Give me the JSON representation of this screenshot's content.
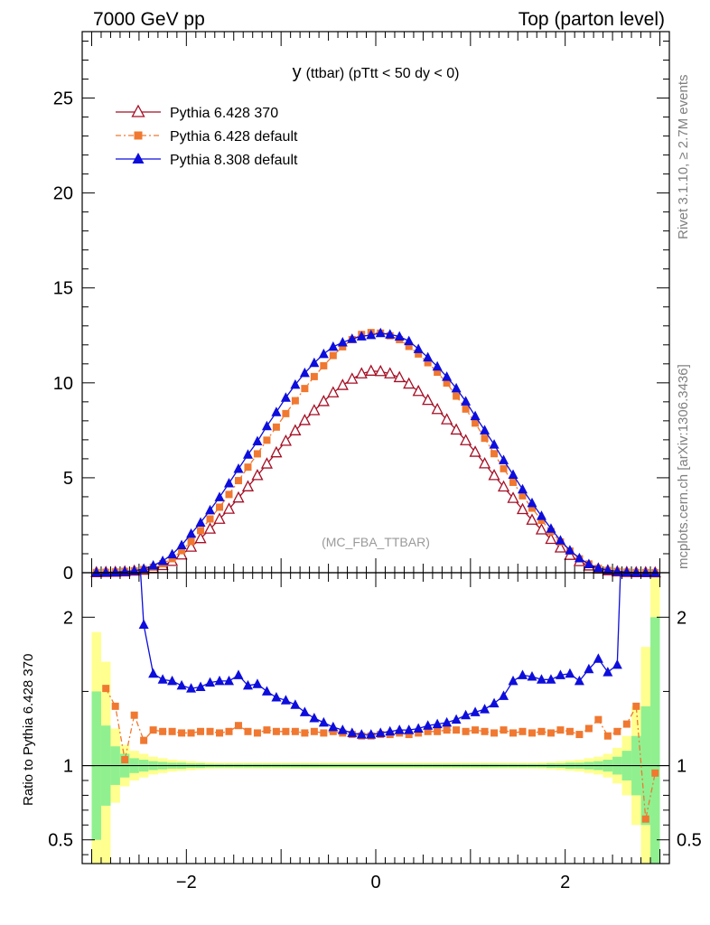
{
  "header": {
    "left": "7000 GeV pp",
    "right": "Top (parton level)"
  },
  "side_labels": {
    "rivet": "Rivet 3.1.10, ≥ 2.7M events",
    "source": "mcplots.cern.ch [arXiv:1306.3436]"
  },
  "chart_data": {
    "type": "line",
    "title_main": "y",
    "title_rest": "(ttbar) (pTtt < 50 dy < 0)",
    "watermark": "(MC_FBA_TTBAR)",
    "xlim": [
      -3.1,
      3.1
    ],
    "ylim": [
      0,
      28.5
    ],
    "ratio_ylim": [
      0.34,
      2.3
    ],
    "yticks": [
      0,
      5,
      10,
      15,
      20,
      25
    ],
    "ytick_labels": [
      "0",
      "5",
      "10",
      "15",
      "20",
      "25"
    ],
    "xticks": [
      -2,
      0,
      2
    ],
    "xtick_labels": [
      "−2",
      "0",
      "2"
    ],
    "ratio_yticks": [
      0.5,
      1,
      2
    ],
    "ratio_ytick_labels": [
      "0.5",
      "1",
      "2"
    ],
    "ratio_ylabel": "Ratio to Pythia 6.428 370",
    "ylabel": "",
    "xlabel": "",
    "bin_width": 0.1,
    "x": [
      -2.95,
      -2.85,
      -2.75,
      -2.65,
      -2.55,
      -2.45,
      -2.35,
      -2.25,
      -2.15,
      -2.05,
      -1.95,
      -1.85,
      -1.75,
      -1.65,
      -1.55,
      -1.45,
      -1.35,
      -1.25,
      -1.15,
      -1.05,
      -0.95,
      -0.85,
      -0.75,
      -0.65,
      -0.55,
      -0.45,
      -0.35,
      -0.25,
      -0.15,
      -0.05,
      0.05,
      0.15,
      0.25,
      0.35,
      0.45,
      0.55,
      0.65,
      0.75,
      0.85,
      0.95,
      1.05,
      1.15,
      1.25,
      1.35,
      1.45,
      1.55,
      1.65,
      1.75,
      1.85,
      1.95,
      2.05,
      2.15,
      2.25,
      2.35,
      2.45,
      2.55,
      2.65,
      2.75,
      2.85,
      2.95
    ],
    "series": [
      {
        "name": "Pythia 6.428 370",
        "color": "#a50f25",
        "marker": "triangle-open",
        "values": [
          0.01,
          0.02,
          0.03,
          0.05,
          0.09,
          0.14,
          0.23,
          0.38,
          0.6,
          0.94,
          1.35,
          1.8,
          2.3,
          2.82,
          3.35,
          3.94,
          4.53,
          5.12,
          5.73,
          6.32,
          6.93,
          7.48,
          8.02,
          8.54,
          9.02,
          9.48,
          9.87,
          10.2,
          10.48,
          10.62,
          10.6,
          10.48,
          10.28,
          9.94,
          9.55,
          9.08,
          8.6,
          8.06,
          7.52,
          6.96,
          6.35,
          5.74,
          5.12,
          4.52,
          3.92,
          3.33,
          2.77,
          2.26,
          1.76,
          1.31,
          0.92,
          0.59,
          0.36,
          0.2,
          0.11,
          0.05,
          0.02,
          0.01,
          0.01,
          0.0
        ],
        "ratio": [
          1.0,
          1.0,
          1.0,
          1.0,
          1.0,
          1.0,
          1.0,
          1.0,
          1.0,
          1.0,
          1.0,
          1.0,
          1.0,
          1.0,
          1.0,
          1.0,
          1.0,
          1.0,
          1.0,
          1.0,
          1.0,
          1.0,
          1.0,
          1.0,
          1.0,
          1.0,
          1.0,
          1.0,
          1.0,
          1.0,
          1.0,
          1.0,
          1.0,
          1.0,
          1.0,
          1.0,
          1.0,
          1.0,
          1.0,
          1.0,
          1.0,
          1.0,
          1.0,
          1.0,
          1.0,
          1.0,
          1.0,
          1.0,
          1.0,
          1.0,
          1.0,
          1.0,
          1.0,
          1.0,
          1.0,
          1.0,
          1.0,
          1.0,
          1.0,
          1.0
        ]
      },
      {
        "name": "Pythia 6.428 default",
        "color": "#f07830",
        "marker": "square",
        "values": [
          0.01,
          0.02,
          0.04,
          0.07,
          0.1,
          0.17,
          0.29,
          0.47,
          0.74,
          1.16,
          1.64,
          2.22,
          2.83,
          3.45,
          4.12,
          4.85,
          5.56,
          6.26,
          6.98,
          7.67,
          8.38,
          9.06,
          9.7,
          10.33,
          10.9,
          11.44,
          11.9,
          12.28,
          12.55,
          12.65,
          12.62,
          12.48,
          12.28,
          11.92,
          11.52,
          11.06,
          10.56,
          9.99,
          9.3,
          8.62,
          7.88,
          7.08,
          6.27,
          5.48,
          4.76,
          4.05,
          3.4,
          2.76,
          2.17,
          1.62,
          1.14,
          0.73,
          0.46,
          0.23,
          0.12,
          0.07,
          0.03,
          0.01,
          0.01,
          0.0
        ],
        "ratio": [
          null,
          1.52,
          1.4,
          1.04,
          1.34,
          1.17,
          1.24,
          1.23,
          1.23,
          1.22,
          1.22,
          1.23,
          1.23,
          1.22,
          1.23,
          1.27,
          1.23,
          1.22,
          1.24,
          1.23,
          1.23,
          1.23,
          1.22,
          1.23,
          1.22,
          1.23,
          1.22,
          1.21,
          1.2,
          1.2,
          1.21,
          1.21,
          1.22,
          1.21,
          1.22,
          1.23,
          1.23,
          1.24,
          1.24,
          1.23,
          1.24,
          1.23,
          1.22,
          1.24,
          1.22,
          1.23,
          1.22,
          1.23,
          1.22,
          1.24,
          1.23,
          1.21,
          1.25,
          1.31,
          1.2,
          1.23,
          1.28,
          1.4,
          0.64,
          0.95
        ]
      },
      {
        "name": "Pythia 8.308 default",
        "color": "#0d0ddc",
        "marker": "triangle",
        "values": [
          0.01,
          0.02,
          0.03,
          0.06,
          0.1,
          0.2,
          0.38,
          0.62,
          0.97,
          1.45,
          2.05,
          2.64,
          3.29,
          3.98,
          4.71,
          5.47,
          6.22,
          6.92,
          7.72,
          8.46,
          9.22,
          9.9,
          10.52,
          11.05,
          11.52,
          11.9,
          12.13,
          12.32,
          12.45,
          12.52,
          12.62,
          12.55,
          12.44,
          12.2,
          11.78,
          11.34,
          10.86,
          10.32,
          9.71,
          9.02,
          8.25,
          7.5,
          6.75,
          5.93,
          5.16,
          4.39,
          3.67,
          2.99,
          2.32,
          1.7,
          1.18,
          0.77,
          0.45,
          0.25,
          0.14,
          0.07,
          0.03,
          0.01,
          0.0,
          0.0
        ],
        "ratio": [
          null,
          null,
          null,
          4.0,
          3.0,
          1.95,
          1.62,
          1.58,
          1.57,
          1.54,
          1.52,
          1.53,
          1.56,
          1.57,
          1.57,
          1.61,
          1.54,
          1.55,
          1.5,
          1.46,
          1.44,
          1.41,
          1.36,
          1.32,
          1.29,
          1.26,
          1.24,
          1.22,
          1.21,
          1.21,
          1.22,
          1.23,
          1.24,
          1.24,
          1.25,
          1.27,
          1.28,
          1.29,
          1.31,
          1.34,
          1.36,
          1.38,
          1.42,
          1.47,
          1.57,
          1.61,
          1.6,
          1.58,
          1.58,
          1.61,
          1.62,
          1.57,
          1.65,
          1.72,
          1.63,
          1.68,
          3.5,
          null,
          null,
          null
        ]
      }
    ],
    "mc_band_1sigma_rel": [
      0.5,
      0.27,
      0.13,
      0.08,
      0.05,
      0.04,
      0.03,
      0.025,
      0.02,
      0.02,
      0.015,
      0.015,
      0.012,
      0.012,
      0.012,
      0.012,
      0.012,
      0.012,
      0.012,
      0.012,
      0.012,
      0.012,
      0.012,
      0.012,
      0.012,
      0.012,
      0.012,
      0.012,
      0.012,
      0.012,
      0.012,
      0.012,
      0.012,
      0.012,
      0.012,
      0.012,
      0.012,
      0.012,
      0.012,
      0.012,
      0.012,
      0.012,
      0.012,
      0.012,
      0.012,
      0.012,
      0.012,
      0.012,
      0.015,
      0.015,
      0.02,
      0.02,
      0.025,
      0.03,
      0.04,
      0.06,
      0.1,
      0.2,
      0.4,
      1.0
    ],
    "mc_band_2sigma_rel": [
      0.9,
      0.7,
      0.25,
      0.14,
      0.1,
      0.08,
      0.06,
      0.05,
      0.04,
      0.035,
      0.03,
      0.025,
      0.022,
      0.02,
      0.02,
      0.02,
      0.02,
      0.02,
      0.02,
      0.02,
      0.02,
      0.02,
      0.02,
      0.02,
      0.02,
      0.02,
      0.02,
      0.02,
      0.02,
      0.02,
      0.02,
      0.02,
      0.02,
      0.02,
      0.02,
      0.02,
      0.02,
      0.02,
      0.02,
      0.02,
      0.02,
      0.02,
      0.02,
      0.02,
      0.02,
      0.02,
      0.02,
      0.022,
      0.025,
      0.03,
      0.035,
      0.04,
      0.05,
      0.06,
      0.08,
      0.12,
      0.2,
      0.4,
      0.8,
      1.5
    ]
  }
}
